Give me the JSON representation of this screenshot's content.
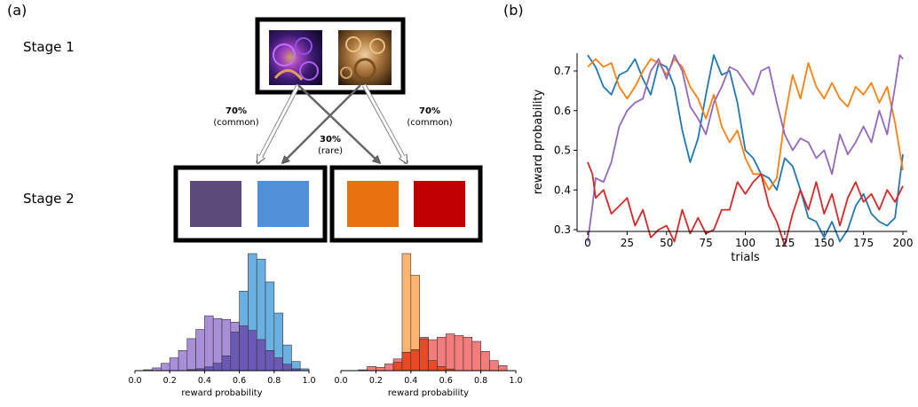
{
  "panel_a": {
    "label": "(a)",
    "stage1_label": "Stage 1",
    "stage2_label": "Stage 2",
    "transitions": {
      "common_left_pct": "70%",
      "common_left_word": "(common)",
      "rare_pct": "30%",
      "rare_word": "(rare)",
      "common_right_pct": "70%",
      "common_right_word": "(common)"
    },
    "stage2_colors": [
      "#5c4a7a",
      "#5090d8",
      "#e8720f",
      "#c00000"
    ]
  },
  "panel_b": {
    "label": "(b)"
  },
  "chart_data": [
    {
      "type": "bar",
      "subtype": "histogram",
      "xlabel": "reward probability",
      "xlim": [
        0,
        1
      ],
      "xticks": [
        "0.0",
        "0.2",
        "0.4",
        "0.6",
        "0.8",
        "1.0"
      ],
      "bin_width": 0.05,
      "bin_starts": [
        0.0,
        0.05,
        0.1,
        0.15,
        0.2,
        0.25,
        0.3,
        0.35,
        0.4,
        0.45,
        0.5,
        0.55,
        0.6,
        0.65,
        0.7,
        0.75,
        0.8,
        0.85,
        0.9,
        0.95
      ],
      "series": [
        {
          "color": "#a98fd8",
          "values": [
            0,
            1,
            3,
            8,
            14,
            22,
            35,
            45,
            60,
            57,
            56,
            53,
            49,
            44,
            34,
            22,
            14,
            7,
            2,
            0
          ]
        },
        {
          "color": "#6ab0e0",
          "values": [
            0,
            0,
            0,
            0,
            0,
            0,
            1,
            2,
            4,
            8,
            16,
            42,
            87,
            128,
            122,
            97,
            63,
            28,
            10,
            2
          ]
        }
      ],
      "overlap_color": "#6a5ab5"
    },
    {
      "type": "bar",
      "subtype": "histogram",
      "xlabel": "reward probability",
      "xlim": [
        0,
        1
      ],
      "xticks": [
        "0.0",
        "0.2",
        "0.4",
        "0.6",
        "0.8",
        "1.0"
      ],
      "bin_width": 0.05,
      "bin_starts": [
        0.0,
        0.05,
        0.1,
        0.15,
        0.2,
        0.25,
        0.3,
        0.35,
        0.4,
        0.45,
        0.5,
        0.55,
        0.6,
        0.65,
        0.7,
        0.75,
        0.8,
        0.85,
        0.9,
        0.95
      ],
      "series": [
        {
          "color": "#ffb570",
          "values": [
            0,
            0,
            0,
            0,
            0,
            0,
            10,
            140,
            114,
            38,
            12,
            5,
            2,
            0,
            0,
            0,
            0,
            0,
            0,
            0
          ]
        },
        {
          "color": "#f47c7c",
          "values": [
            0,
            0,
            1,
            5,
            4,
            8,
            14,
            22,
            25,
            40,
            37,
            40,
            44,
            42,
            40,
            35,
            23,
            12,
            6,
            0
          ]
        }
      ],
      "overlap_color": "#e84a26"
    },
    {
      "type": "line",
      "ylabel": "reward probability",
      "xlabel": "trials",
      "xlim": [
        0,
        200
      ],
      "ylim": [
        0.25,
        0.75
      ],
      "xticks": [
        0,
        25,
        50,
        75,
        100,
        125,
        150,
        175,
        200
      ],
      "yticks": [
        "0.3",
        "0.4",
        "0.5",
        "0.6",
        "0.7"
      ],
      "grid": false,
      "series": [
        {
          "color": "#1f77b4",
          "points": [
            [
              0,
              0.74
            ],
            [
              5,
              0.71
            ],
            [
              10,
              0.66
            ],
            [
              15,
              0.64
            ],
            [
              20,
              0.69
            ],
            [
              25,
              0.7
            ],
            [
              30,
              0.73
            ],
            [
              35,
              0.68
            ],
            [
              40,
              0.64
            ],
            [
              45,
              0.72
            ],
            [
              50,
              0.71
            ],
            [
              55,
              0.66
            ],
            [
              60,
              0.55
            ],
            [
              65,
              0.47
            ],
            [
              70,
              0.53
            ],
            [
              75,
              0.64
            ],
            [
              80,
              0.74
            ],
            [
              85,
              0.69
            ],
            [
              90,
              0.7
            ],
            [
              95,
              0.62
            ],
            [
              100,
              0.5
            ],
            [
              105,
              0.48
            ],
            [
              110,
              0.44
            ],
            [
              115,
              0.43
            ],
            [
              120,
              0.4
            ],
            [
              125,
              0.48
            ],
            [
              130,
              0.46
            ],
            [
              135,
              0.4
            ],
            [
              140,
              0.33
            ],
            [
              145,
              0.32
            ],
            [
              150,
              0.28
            ],
            [
              155,
              0.32
            ],
            [
              160,
              0.27
            ],
            [
              165,
              0.3
            ],
            [
              170,
              0.36
            ],
            [
              175,
              0.39
            ],
            [
              180,
              0.34
            ],
            [
              185,
              0.32
            ],
            [
              190,
              0.31
            ],
            [
              195,
              0.33
            ],
            [
              200,
              0.49
            ]
          ]
        },
        {
          "color": "#ff7f0e",
          "points": [
            [
              0,
              0.71
            ],
            [
              5,
              0.73
            ],
            [
              10,
              0.71
            ],
            [
              15,
              0.72
            ],
            [
              20,
              0.66
            ],
            [
              25,
              0.63
            ],
            [
              30,
              0.66
            ],
            [
              35,
              0.7
            ],
            [
              40,
              0.73
            ],
            [
              45,
              0.72
            ],
            [
              50,
              0.69
            ],
            [
              55,
              0.73
            ],
            [
              60,
              0.71
            ],
            [
              65,
              0.66
            ],
            [
              70,
              0.63
            ],
            [
              75,
              0.58
            ],
            [
              80,
              0.64
            ],
            [
              85,
              0.56
            ],
            [
              90,
              0.52
            ],
            [
              95,
              0.55
            ],
            [
              100,
              0.48
            ],
            [
              105,
              0.44
            ],
            [
              110,
              0.44
            ],
            [
              115,
              0.4
            ],
            [
              120,
              0.43
            ],
            [
              125,
              0.58
            ],
            [
              130,
              0.69
            ],
            [
              135,
              0.63
            ],
            [
              140,
              0.72
            ],
            [
              145,
              0.66
            ],
            [
              150,
              0.63
            ],
            [
              155,
              0.67
            ],
            [
              160,
              0.63
            ],
            [
              165,
              0.61
            ],
            [
              170,
              0.66
            ],
            [
              175,
              0.64
            ],
            [
              180,
              0.67
            ],
            [
              185,
              0.62
            ],
            [
              190,
              0.66
            ],
            [
              195,
              0.57
            ],
            [
              200,
              0.45
            ]
          ]
        },
        {
          "color": "#9467bd",
          "points": [
            [
              0,
              0.27
            ],
            [
              3,
              0.36
            ],
            [
              5,
              0.43
            ],
            [
              10,
              0.42
            ],
            [
              15,
              0.47
            ],
            [
              20,
              0.56
            ],
            [
              25,
              0.6
            ],
            [
              30,
              0.62
            ],
            [
              35,
              0.63
            ],
            [
              40,
              0.7
            ],
            [
              45,
              0.73
            ],
            [
              50,
              0.68
            ],
            [
              55,
              0.74
            ],
            [
              60,
              0.7
            ],
            [
              65,
              0.61
            ],
            [
              70,
              0.58
            ],
            [
              75,
              0.54
            ],
            [
              80,
              0.62
            ],
            [
              85,
              0.66
            ],
            [
              90,
              0.71
            ],
            [
              95,
              0.7
            ],
            [
              100,
              0.67
            ],
            [
              105,
              0.64
            ],
            [
              110,
              0.7
            ],
            [
              115,
              0.71
            ],
            [
              120,
              0.62
            ],
            [
              125,
              0.54
            ],
            [
              130,
              0.5
            ],
            [
              135,
              0.53
            ],
            [
              140,
              0.52
            ],
            [
              145,
              0.48
            ],
            [
              150,
              0.5
            ],
            [
              155,
              0.44
            ],
            [
              160,
              0.54
            ],
            [
              165,
              0.49
            ],
            [
              170,
              0.52
            ],
            [
              175,
              0.56
            ],
            [
              180,
              0.52
            ],
            [
              185,
              0.6
            ],
            [
              190,
              0.54
            ],
            [
              195,
              0.66
            ],
            [
              198,
              0.74
            ],
            [
              200,
              0.73
            ]
          ]
        },
        {
          "color": "#d62728",
          "points": [
            [
              0,
              0.47
            ],
            [
              3,
              0.44
            ],
            [
              5,
              0.38
            ],
            [
              10,
              0.4
            ],
            [
              15,
              0.34
            ],
            [
              20,
              0.36
            ],
            [
              25,
              0.38
            ],
            [
              30,
              0.31
            ],
            [
              35,
              0.35
            ],
            [
              40,
              0.28
            ],
            [
              45,
              0.3
            ],
            [
              50,
              0.31
            ],
            [
              55,
              0.27
            ],
            [
              60,
              0.35
            ],
            [
              65,
              0.29
            ],
            [
              70,
              0.33
            ],
            [
              75,
              0.29
            ],
            [
              80,
              0.3
            ],
            [
              85,
              0.35
            ],
            [
              90,
              0.35
            ],
            [
              95,
              0.42
            ],
            [
              100,
              0.39
            ],
            [
              105,
              0.42
            ],
            [
              110,
              0.44
            ],
            [
              115,
              0.36
            ],
            [
              120,
              0.32
            ],
            [
              125,
              0.26
            ],
            [
              130,
              0.34
            ],
            [
              135,
              0.4
            ],
            [
              140,
              0.35
            ],
            [
              145,
              0.42
            ],
            [
              150,
              0.34
            ],
            [
              155,
              0.39
            ],
            [
              160,
              0.31
            ],
            [
              165,
              0.38
            ],
            [
              170,
              0.42
            ],
            [
              175,
              0.37
            ],
            [
              180,
              0.39
            ],
            [
              185,
              0.35
            ],
            [
              190,
              0.4
            ],
            [
              195,
              0.37
            ],
            [
              200,
              0.41
            ]
          ]
        }
      ]
    }
  ]
}
